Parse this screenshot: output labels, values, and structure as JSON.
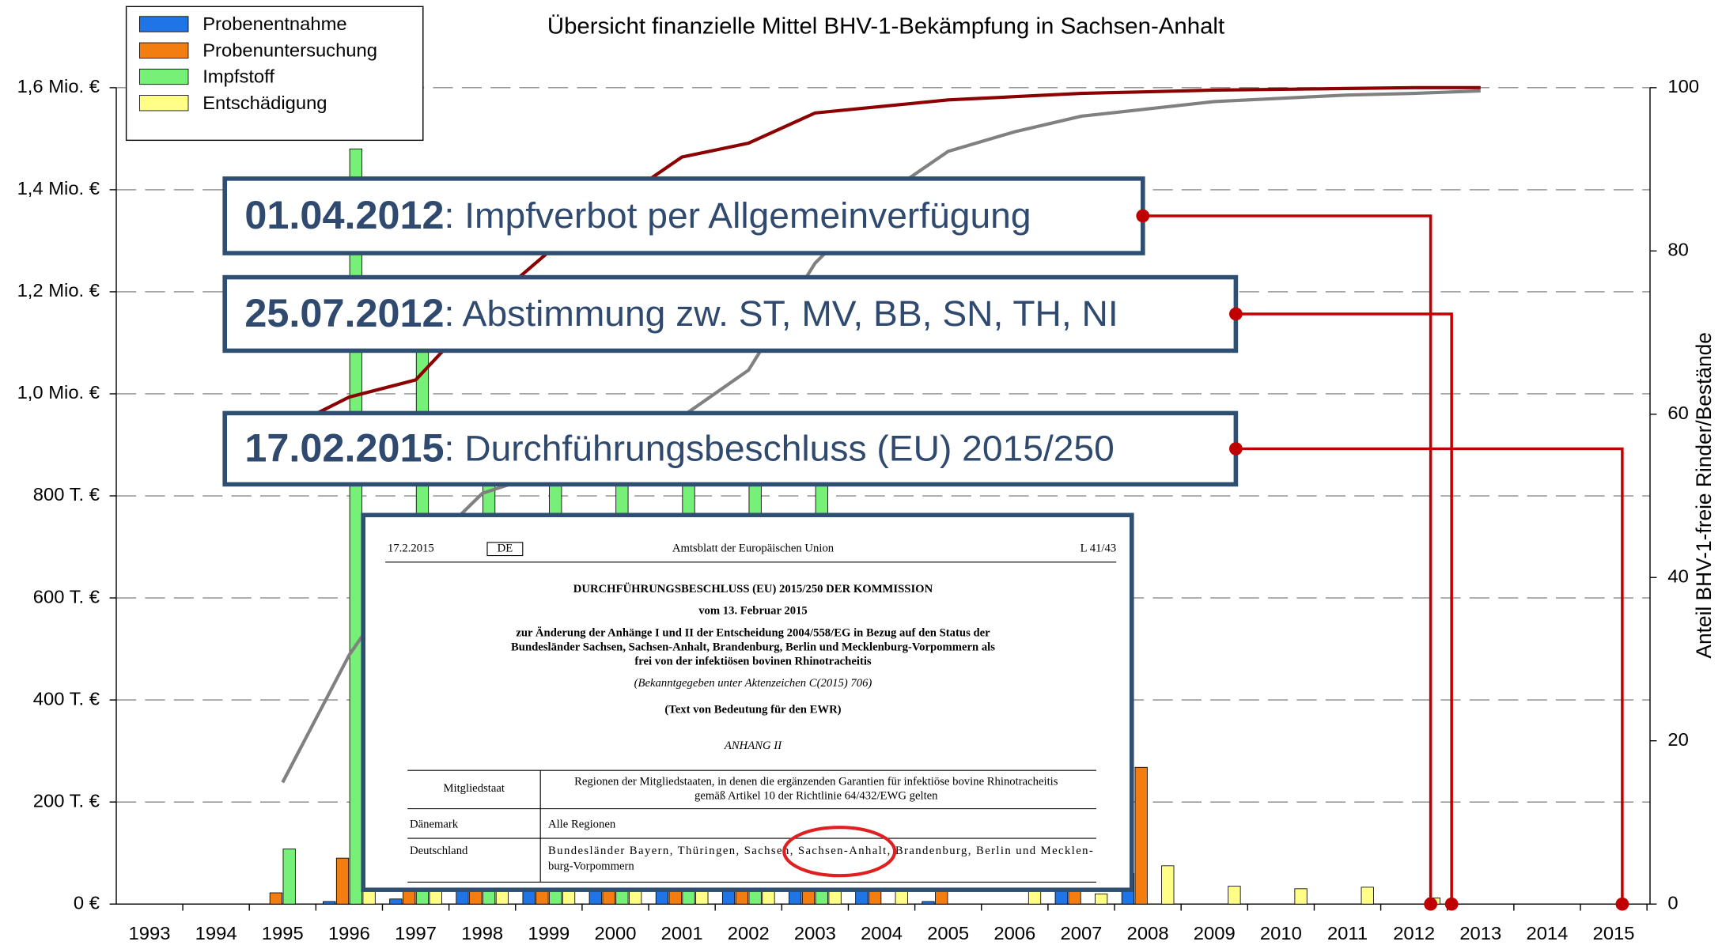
{
  "chart_data": {
    "type": "bar",
    "title": "Übersicht finanzielle Mittel BHV-1-Bekämpfung in Sachsen-Anhalt",
    "y2_label": "Anteil BHV-1-freie Rinder/Bestände",
    "categories": [
      "1993",
      "1994",
      "1995",
      "1996",
      "1997",
      "1998",
      "1999",
      "2000",
      "2001",
      "2002",
      "2003",
      "2004",
      "2005",
      "2006",
      "2007",
      "2008",
      "2009",
      "2010",
      "2011",
      "2012",
      "2013",
      "2014",
      "2015"
    ],
    "series": [
      {
        "name": "Probenentnahme",
        "color": "#1f74e6",
        "values": [
          0,
          0,
          0,
          5000,
          10000,
          60000,
          60000,
          60000,
          60000,
          60000,
          60000,
          60000,
          5000,
          0,
          60000,
          60000,
          0,
          0,
          0,
          0,
          0,
          0,
          0
        ]
      },
      {
        "name": "Probenuntersuchung",
        "color": "#f47d12",
        "values": [
          0,
          0,
          22000,
          90000,
          300000,
          150000,
          150000,
          150000,
          150000,
          150000,
          150000,
          150000,
          60000,
          0,
          60000,
          268000,
          0,
          0,
          0,
          0,
          0,
          0,
          0
        ]
      },
      {
        "name": "Impfstoff",
        "color": "#77f077",
        "values": [
          0,
          0,
          108000,
          1480000,
          1085000,
          900000,
          900000,
          900000,
          900000,
          900000,
          900000,
          0,
          0,
          0,
          0,
          0,
          0,
          0,
          0,
          0,
          0,
          0,
          0
        ]
      },
      {
        "name": "Entschädigung",
        "color": "#ffff88",
        "values": [
          0,
          0,
          0,
          40000,
          30000,
          30000,
          30000,
          30000,
          30000,
          30000,
          30000,
          30000,
          0,
          30000,
          20000,
          75000,
          35000,
          30000,
          33000,
          12000,
          0,
          0,
          0
        ]
      },
      {
        "type": "line",
        "axis": "y2",
        "color": "#8b0000",
        "values": [
          null,
          null,
          58,
          62.1,
          64.2,
          72.9,
          79.9,
          85.9,
          91.5,
          93.2,
          96.9,
          97.7,
          98.5,
          98.9,
          99.3,
          99.5,
          99.7,
          99.8,
          99.9,
          100,
          100,
          null,
          null
        ]
      },
      {
        "type": "line",
        "axis": "y2",
        "color": "#808080",
        "values": [
          null,
          null,
          14.9,
          30.5,
          42.3,
          50.3,
          53,
          57,
          59.7,
          65.4,
          78.5,
          86.6,
          92.2,
          94.6,
          96.5,
          97.4,
          98.3,
          98.7,
          99.1,
          99.3,
          99.6,
          null,
          null
        ]
      }
    ],
    "ylim": [
      0,
      1600000
    ],
    "yticks": [
      {
        "value": 0,
        "label": "0 €"
      },
      {
        "value": 200000,
        "label": "200 T. €"
      },
      {
        "value": 400000,
        "label": "400 T. €"
      },
      {
        "value": 600000,
        "label": "600 T. €"
      },
      {
        "value": 800000,
        "label": "800 T. €"
      },
      {
        "value": 1000000,
        "label": "1,0 Mio. €"
      },
      {
        "value": 1200000,
        "label": "1,2 Mio. €"
      },
      {
        "value": 1400000,
        "label": "1,4 Mio. €"
      },
      {
        "value": 1600000,
        "label": "1,6 Mio. €"
      }
    ],
    "y2lim": [
      0,
      100
    ],
    "y2ticks": [
      0,
      20,
      40,
      60,
      80,
      100
    ],
    "grid": true,
    "legend": "top-left",
    "annotations": [
      {
        "date": "01.04.2012",
        "text": ": Impfverbot per Allgemeinverfügung"
      },
      {
        "date": "25.07.2012",
        "text": ": Abstimmung zw. ST, MV, BB, SN, TH, NI"
      },
      {
        "date": "17.02.2015",
        "text": ": Durchführungsbeschluss (EU) 2015/250"
      }
    ]
  },
  "document": {
    "date": "17.2.2015",
    "lang": "DE",
    "journal": "Amtsblatt der Europäischen Union",
    "page": "L 41/43",
    "title": "DURCHFÜHRUNGSBESCHLUSS (EU) 2015/250 DER KOMMISSION",
    "subtitle": "vom 13. Februar 2015",
    "subject": [
      "zur Änderung der Anhänge I und II der Entscheidung 2004/558/EG in Bezug auf den Status der",
      "Bundesländer Sachsen, Sachsen-Anhalt, Brandenburg, Berlin und Mecklenburg-Vorpommern als",
      "frei von der infektiösen bovinen Rhinotracheitis"
    ],
    "reference": "(Bekanntgegeben unter Aktenzeichen C(2015) 706)",
    "relevance": "(Text von Bedeutung für den EWR)",
    "annex": "ANHANG II",
    "table": {
      "header": [
        "Mitgliedstaat",
        [
          "Regionen der Mitgliedstaaten, in denen die ergänzenden Garantien für infektiöse bovine Rhinotracheitis",
          "gemäß Artikel 10 der Richtlinie 64/432/EWG gelten"
        ]
      ],
      "rows": [
        [
          "Dänemark",
          [
            "Alle Regionen"
          ]
        ],
        [
          "Deutschland",
          [
            "Bundesländer Bayern, Thüringen, Sachsen, Sachsen-Anhalt, Brandenburg, Berlin und Mecklen-",
            "burg-Vorpommern"
          ]
        ]
      ]
    }
  }
}
